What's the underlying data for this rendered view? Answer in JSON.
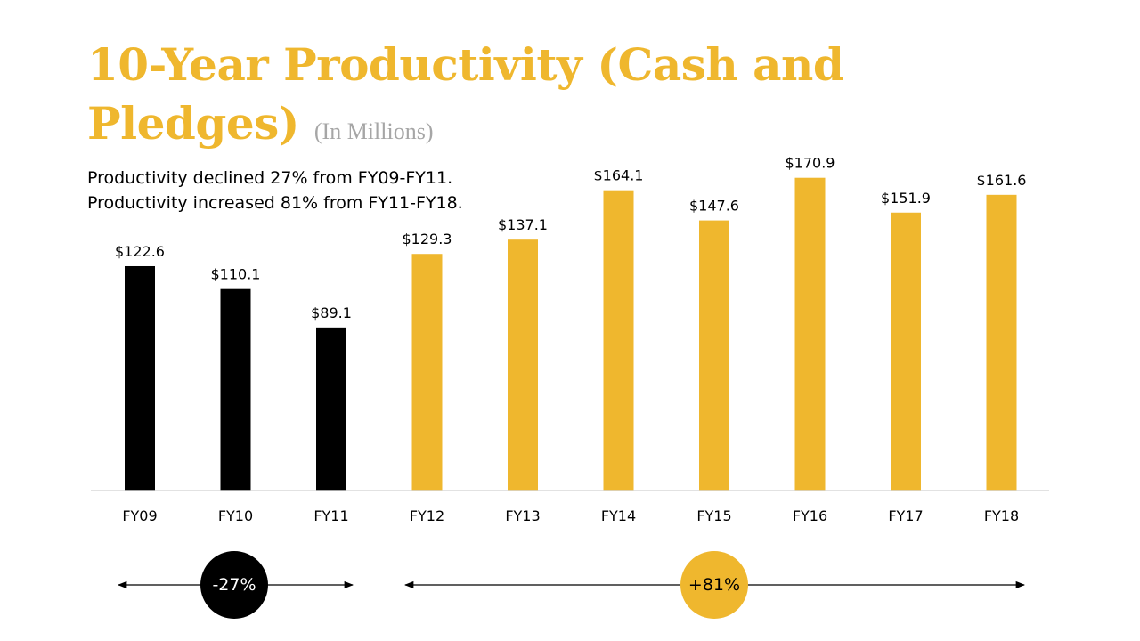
{
  "slide": {
    "title": "10-Year Productivity (Cash and Pledges)",
    "subtitle": "(In Millions)",
    "notes": [
      "Productivity declined 27% from FY09-FY11.",
      "Productivity increased 81% from FY11-FY18."
    ],
    "badges": {
      "decline": "-27%",
      "increase": "+81%"
    }
  },
  "colors": {
    "decline": "#000000",
    "growth": "#EFB72E",
    "title": "#EFB72E",
    "subtitle": "#A6A6A6"
  },
  "chart_data": {
    "type": "bar",
    "title": "10-Year Productivity (Cash and Pledges)",
    "subtitle": "(In Millions)",
    "categories": [
      "FY09",
      "FY10",
      "FY11",
      "FY12",
      "FY13",
      "FY14",
      "FY15",
      "FY16",
      "FY17",
      "FY18"
    ],
    "values": [
      122.6,
      110.1,
      89.1,
      129.3,
      137.1,
      164.1,
      147.6,
      170.9,
      151.9,
      161.6
    ],
    "labels": [
      "$122.6",
      "$110.1",
      "$89.1",
      "$129.3",
      "$137.1",
      "$164.1",
      "$147.6",
      "$170.9",
      "$151.9",
      "$161.6"
    ],
    "bar_colors": [
      "#000000",
      "#000000",
      "#000000",
      "#EFB72E",
      "#EFB72E",
      "#EFB72E",
      "#EFB72E",
      "#EFB72E",
      "#EFB72E",
      "#EFB72E"
    ],
    "ylim": [
      0,
      180
    ],
    "grid": false,
    "legend": "none",
    "xlabel": "",
    "ylabel": ""
  }
}
